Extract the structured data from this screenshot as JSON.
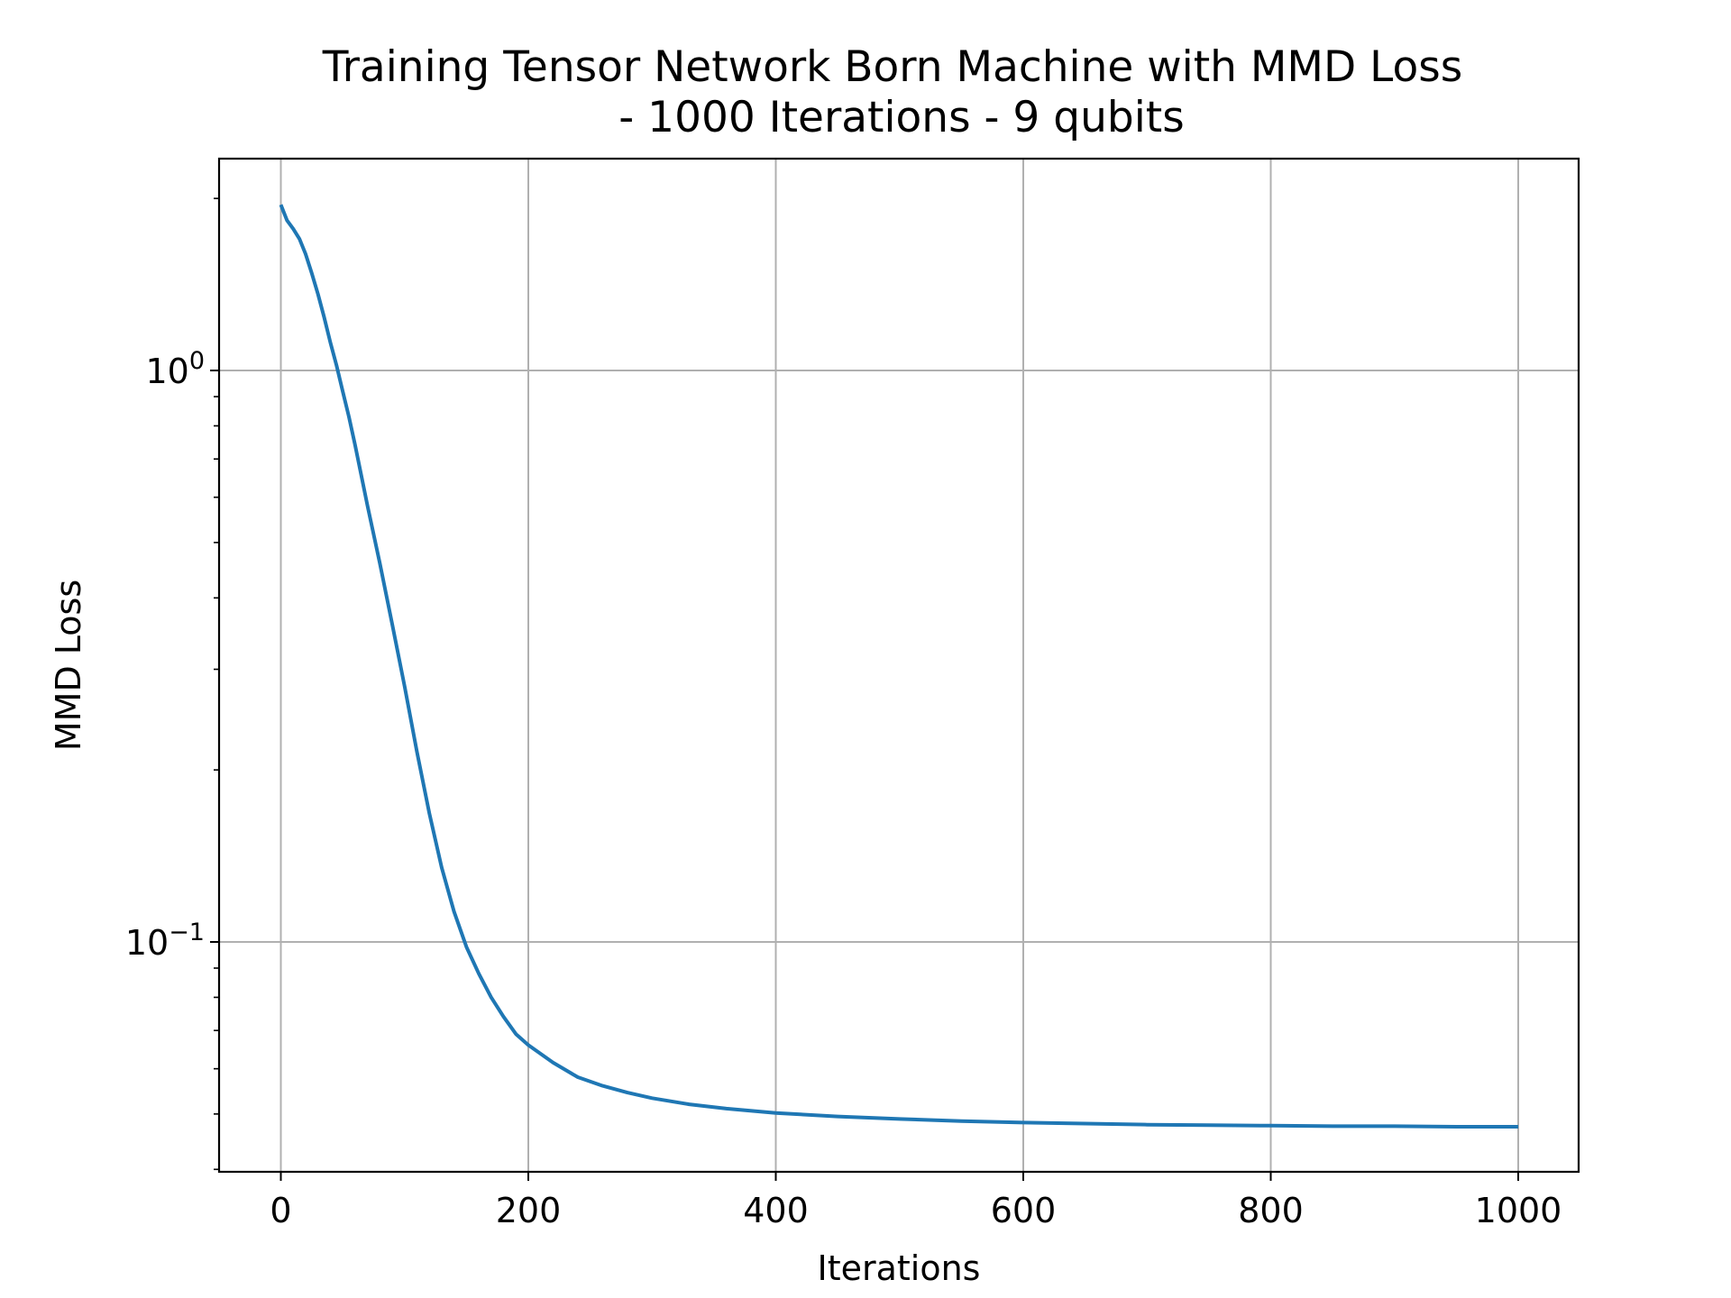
{
  "chart_data": {
    "type": "line",
    "title": "Training Tensor Network Born Machine with MMD Loss",
    "subtitle": "- 1000 Iterations - 9 qubits",
    "xlabel": "Iterations",
    "ylabel": "MMD Loss",
    "xlim": [
      -25,
      1050
    ],
    "ylim": [
      0.04,
      2.3
    ],
    "yscale": "log",
    "grid": true,
    "x_ticks": [
      0,
      200,
      400,
      600,
      800,
      1000
    ],
    "x_tick_labels": [
      "0",
      "200",
      "400",
      "600",
      "800",
      "1000"
    ],
    "y_ticks": [
      {
        "value": 1.0,
        "base": "10",
        "exp": "0"
      },
      {
        "value": 0.1,
        "base": "10",
        "exp": "−1"
      }
    ],
    "series": [
      {
        "color": "#1f77b4",
        "x": [
          0,
          5,
          10,
          15,
          20,
          25,
          30,
          35,
          40,
          45,
          50,
          55,
          60,
          70,
          80,
          90,
          100,
          110,
          120,
          130,
          140,
          150,
          160,
          170,
          180,
          190,
          200,
          220,
          240,
          260,
          280,
          300,
          330,
          360,
          400,
          450,
          500,
          550,
          600,
          650,
          700,
          750,
          800,
          850,
          900,
          950,
          1000
        ],
        "y": [
          1.95,
          1.83,
          1.77,
          1.7,
          1.6,
          1.48,
          1.36,
          1.24,
          1.12,
          1.02,
          0.92,
          0.83,
          0.74,
          0.58,
          0.46,
          0.36,
          0.28,
          0.215,
          0.168,
          0.135,
          0.113,
          0.098,
          0.088,
          0.08,
          0.074,
          0.069,
          0.066,
          0.0615,
          0.058,
          0.056,
          0.0545,
          0.0533,
          0.052,
          0.0511,
          0.0502,
          0.0495,
          0.049,
          0.0486,
          0.0483,
          0.0481,
          0.0479,
          0.0478,
          0.0477,
          0.0476,
          0.0476,
          0.0475,
          0.0475
        ]
      }
    ]
  }
}
